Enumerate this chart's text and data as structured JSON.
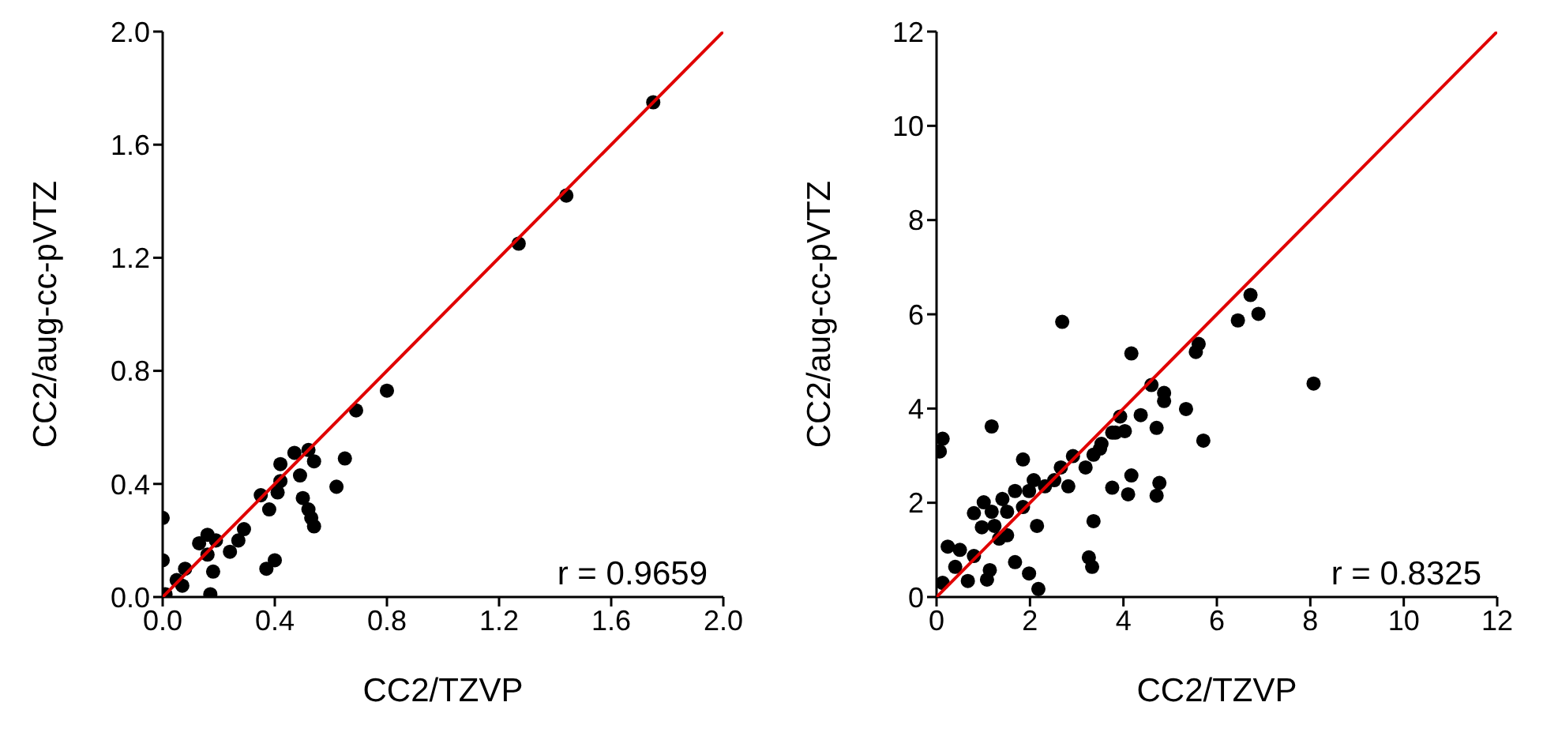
{
  "chart_data": [
    {
      "type": "scatter",
      "xlabel": "CC2/TZVP",
      "ylabel": "CC2/aug-cc-pVTZ",
      "xlim": [
        0,
        2
      ],
      "ylim": [
        0,
        2
      ],
      "xticks": [
        {
          "value": 0,
          "label": "0.0"
        },
        {
          "value": 0.4,
          "label": "0.4"
        },
        {
          "value": 0.8,
          "label": "0.8"
        },
        {
          "value": 1.2,
          "label": "1.2"
        },
        {
          "value": 1.6,
          "label": "1.6"
        },
        {
          "value": 2,
          "label": "2.0"
        }
      ],
      "yticks": [
        {
          "value": 0,
          "label": "0.0"
        },
        {
          "value": 0.4,
          "label": "0.4"
        },
        {
          "value": 0.8,
          "label": "0.8"
        },
        {
          "value": 1.2,
          "label": "1.2"
        },
        {
          "value": 1.6,
          "label": "1.6"
        },
        {
          "value": 2,
          "label": "2.0"
        }
      ],
      "grid": false,
      "legend": false,
      "annotations": [
        "r = 0.9659"
      ],
      "series": [
        {
          "marker": "circle",
          "color": "#000000",
          "x": [
            0,
            0,
            0.01,
            0.05,
            0.07,
            0.08,
            0.13,
            0.16,
            0.19,
            0.16,
            0.18,
            0.17,
            0.24,
            0.26,
            0.29,
            0.27,
            0.37,
            0.4,
            0.38,
            0.35,
            0.41,
            0.42,
            0.42,
            0.47,
            0.49,
            0.5,
            0.52,
            0.53,
            0.54,
            0.52,
            0.54,
            0.62,
            0.65,
            0.69,
            0.8,
            1.27,
            1.44,
            1.75
          ],
          "values": [
            0.28,
            0.13,
            0.01,
            0.06,
            0.04,
            0.1,
            0.19,
            0.22,
            0.2,
            0.15,
            0.09,
            0.01,
            0.16,
            null,
            0.24,
            0.2,
            0.1,
            0.13,
            0.31,
            0.36,
            0.37,
            0.41,
            0.47,
            0.51,
            0.43,
            0.35,
            0.31,
            0.28,
            0.25,
            0.52,
            0.48,
            0.39,
            0.49,
            0.66,
            0.73,
            1.25,
            1.42,
            1.75
          ]
        },
        {
          "type": "line",
          "color": "#e00000",
          "x": [
            0,
            2
          ],
          "values": [
            0,
            2
          ]
        }
      ]
    },
    {
      "type": "scatter",
      "xlabel": "CC2/TZVP",
      "ylabel": "CC2/aug-cc-pVTZ",
      "xlim": [
        0,
        12
      ],
      "ylim": [
        0,
        12
      ],
      "xticks": [
        0,
        2,
        4,
        6,
        8,
        10,
        12
      ],
      "yticks": [
        0,
        2,
        4,
        6,
        8,
        10,
        12
      ],
      "grid": false,
      "legend": false,
      "annotations": [
        "r = 0.8325"
      ],
      "series": [
        {
          "marker": "circle",
          "color": "#000000",
          "x": [
            0.13,
            0.07,
            1.18,
            0.24,
            0.5,
            0.4,
            0.13,
            0.67,
            0.8,
            1.08,
            1.14,
            0.8,
            1.01,
            0.97,
            1.18,
            1.24,
            1.34,
            1.51,
            1.41,
            1.51,
            1.68,
            1.85,
            1.98,
            2.08,
            1.85,
            2.15,
            1.68,
            1.98,
            2.18,
            2.32,
            2.66,
            2.92,
            2.52,
            2.82,
            3.19,
            3.36,
            3.26,
            3.33,
            3.5,
            3.76,
            3.76,
            4.1,
            3.93,
            2.69,
            4.17,
            6.45,
            6.89,
            5.55,
            5.61,
            4.6,
            4.87,
            4.87,
            4.37,
            5.34,
            4.71,
            5.71,
            4.03,
            3.83,
            3.53,
            3.36,
            4.17,
            4.77,
            4.71,
            6.72,
            8.07
          ],
          "values": [
            3.36,
            3.09,
            3.62,
            1.07,
            1,
            0.64,
            0.3,
            0.34,
            0.87,
            0.37,
            0.57,
            1.78,
            2.01,
            1.48,
            1.81,
            1.51,
            1.24,
            1.31,
            2.08,
            1.81,
            2.25,
            2.92,
            2.25,
            2.48,
            1.91,
            1.51,
            0.74,
            0.5,
            0.17,
            2.35,
            2.75,
            2.99,
            2.48,
            2.35,
            2.75,
            1.61,
            0.84,
            0.64,
            3.15,
            2.32,
            3.49,
            2.18,
            3.83,
            5.84,
            5.17,
            5.87,
            6.01,
            5.2,
            5.37,
            4.5,
            4.33,
            4.16,
            3.86,
            3.99,
            3.59,
            3.32,
            3.52,
            3.49,
            3.25,
            3.02,
            2.58,
            2.42,
            2.15,
            6.41,
            4.53
          ]
        },
        {
          "type": "line",
          "color": "#e00000",
          "x": [
            0,
            12
          ],
          "values": [
            0,
            12
          ]
        }
      ]
    }
  ]
}
